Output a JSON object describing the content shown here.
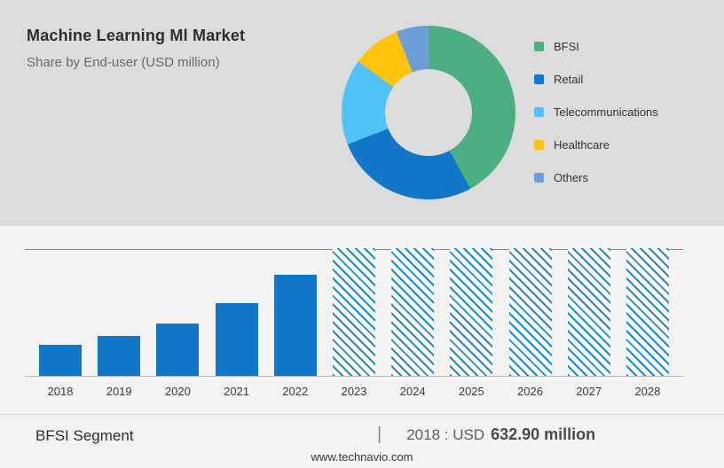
{
  "header": {
    "title": "Machine Learning Ml Market",
    "subtitle": "Share by End-user (USD million)"
  },
  "chart_data": [
    {
      "type": "pie",
      "donut": true,
      "title": "Share by End-user (USD million)",
      "labels": [
        "BFSI",
        "Retail",
        "Telecommunications",
        "Healthcare",
        "Others"
      ],
      "values": [
        42,
        27,
        16,
        9,
        6
      ],
      "colors": [
        "#4caf82",
        "#1178c9",
        "#4fc3f7",
        "#fec40c",
        "#6d9ed7"
      ],
      "legend_position": "right"
    },
    {
      "type": "bar",
      "categories": [
        "2018",
        "2019",
        "2020",
        "2021",
        "2022",
        "2023",
        "2024",
        "2025",
        "2026",
        "2027",
        "2028"
      ],
      "values": [
        632.9,
        810,
        1070,
        1480,
        2060,
        null,
        null,
        null,
        null,
        null,
        null
      ],
      "forecast_categories": [
        "2023",
        "2024",
        "2025",
        "2026",
        "2027",
        "2028"
      ],
      "bar_color": "#1178c9",
      "ylabel": "USD million",
      "ylim": [
        0,
        2600
      ],
      "grid": "single top gridline",
      "note_2018_value": "632.90"
    }
  ],
  "footer": {
    "segment_label": "BFSI Segment",
    "separator": "|",
    "stat_prefix": "2018 : USD",
    "stat_value": "632.90 million",
    "website": "www.technavio.com"
  }
}
